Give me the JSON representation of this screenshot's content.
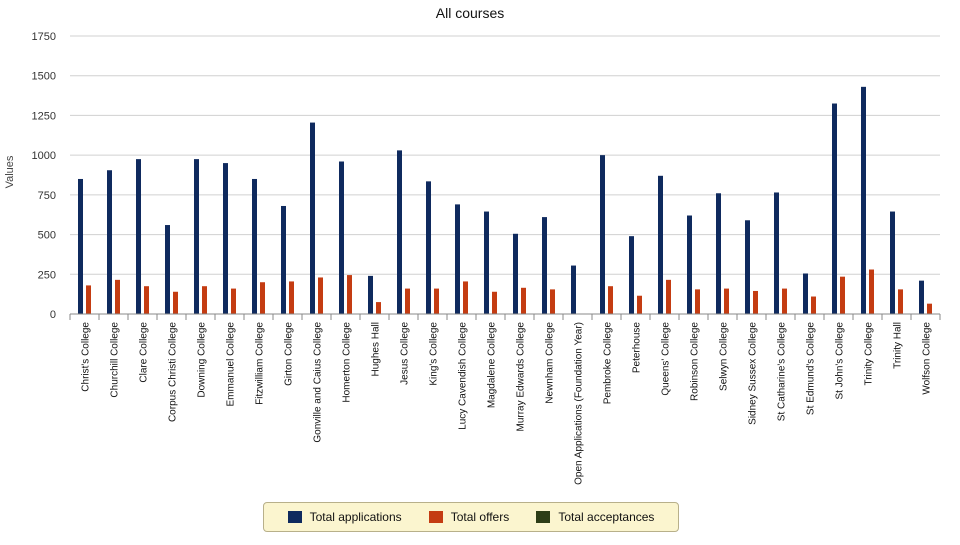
{
  "chart_data": {
    "type": "bar",
    "title": "All courses",
    "ylabel": "Values",
    "xlabel": "",
    "ylim": [
      0,
      1750
    ],
    "yticks": [
      0,
      250,
      500,
      750,
      1000,
      1250,
      1500,
      1750
    ],
    "grid": true,
    "legend_position": "bottom",
    "categories": [
      "Christ's College",
      "Churchill College",
      "Clare College",
      "Corpus Christi College",
      "Downing College",
      "Emmanuel College",
      "Fitzwilliam College",
      "Girton College",
      "Gonville and Caius College",
      "Homerton College",
      "Hughes Hall",
      "Jesus College",
      "King's College",
      "Lucy Cavendish College",
      "Magdalene College",
      "Murray Edwards College",
      "Newnham College",
      "Open Applications (Foundation Year)",
      "Pembroke College",
      "Peterhouse",
      "Queens' College",
      "Robinson College",
      "Selwyn College",
      "Sidney Sussex College",
      "St Catharine's College",
      "St Edmund's College",
      "St John's College",
      "Trinity College",
      "Trinity Hall",
      "Wolfson College"
    ],
    "series": [
      {
        "name": "Total applications",
        "color": "#0f2a5e",
        "values": [
          850,
          905,
          975,
          560,
          975,
          950,
          850,
          680,
          1205,
          960,
          240,
          1030,
          835,
          690,
          645,
          505,
          610,
          305,
          1000,
          490,
          870,
          620,
          760,
          590,
          765,
          255,
          1325,
          1430,
          645,
          210
        ]
      },
      {
        "name": "Total offers",
        "color": "#c43c12",
        "values": [
          180,
          215,
          175,
          140,
          175,
          160,
          200,
          205,
          230,
          245,
          75,
          160,
          160,
          205,
          140,
          165,
          155,
          0,
          175,
          115,
          215,
          155,
          160,
          145,
          160,
          110,
          235,
          280,
          155,
          65
        ]
      },
      {
        "name": "Total acceptances",
        "color": "#2d3d16",
        "values": [
          0,
          0,
          0,
          0,
          0,
          0,
          0,
          0,
          0,
          0,
          0,
          0,
          0,
          0,
          0,
          0,
          0,
          0,
          0,
          0,
          0,
          0,
          0,
          0,
          0,
          0,
          0,
          0,
          0,
          0
        ]
      }
    ]
  }
}
